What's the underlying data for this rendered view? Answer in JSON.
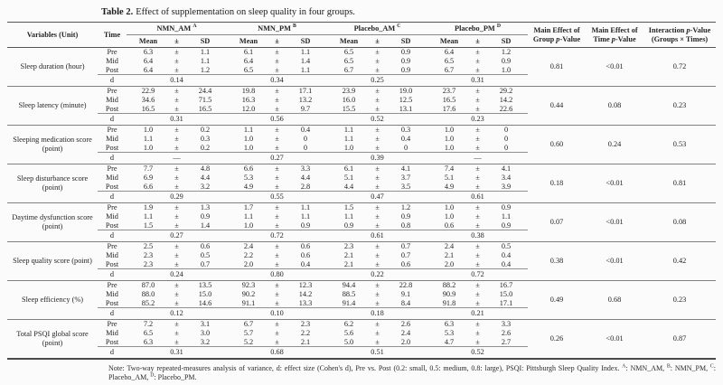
{
  "title": {
    "label": "Table 2.",
    "text": "Effect of supplementation on sleep quality in four groups."
  },
  "colors": {
    "page_background": "#fbfbfb",
    "text": "#222222",
    "heavy_rule": "#555555",
    "light_rule": "#888888"
  },
  "table": {
    "pm": "±",
    "d_label": "d",
    "headers": {
      "variables": "Variables (Unit)",
      "time": "Time",
      "groups": [
        {
          "name": "NMN_AM",
          "sup": "A"
        },
        {
          "name": "NMN_PM",
          "sup": "B"
        },
        {
          "name": "Placebo_AM",
          "sup": "C"
        },
        {
          "name": "Placebo_PM",
          "sup": "D"
        }
      ],
      "sub": [
        "Mean",
        "±",
        "SD"
      ],
      "p_columns": [
        {
          "id": "p-group",
          "lines": [
            "Main Effect of",
            "Group p-Value"
          ]
        },
        {
          "id": "p-time",
          "lines": [
            "Main Effect of",
            "Time p-Value"
          ]
        },
        {
          "id": "p-interaction",
          "lines": [
            "Interaction p-Value",
            "(Groups × Times)"
          ]
        }
      ]
    },
    "blocks": [
      {
        "variable": "Sleep duration (hour)",
        "rows": [
          {
            "time": "Pre",
            "cells": [
              [
                "6.3",
                "1.1"
              ],
              [
                "6.1",
                "1.1"
              ],
              [
                "6.5",
                "0.9"
              ],
              [
                "6.4",
                "1.2"
              ]
            ]
          },
          {
            "time": "Mid",
            "cells": [
              [
                "6.4",
                "1.1"
              ],
              [
                "6.4",
                "1.4"
              ],
              [
                "6.5",
                "0.9"
              ],
              [
                "6.5",
                "0.9"
              ]
            ]
          },
          {
            "time": "Post",
            "cells": [
              [
                "6.4",
                "1.2"
              ],
              [
                "6.5",
                "1.1"
              ],
              [
                "6.7",
                "0.9"
              ],
              [
                "6.7",
                "1.0"
              ]
            ]
          }
        ],
        "d": [
          "0.14",
          "0.34",
          "0.25",
          "0.31"
        ],
        "p": [
          "0.81",
          "<0.01",
          "0.72"
        ]
      },
      {
        "variable": "Sleep latency (minute)",
        "rows": [
          {
            "time": "Pre",
            "cells": [
              [
                "22.9",
                "24.4"
              ],
              [
                "19.8",
                "17.1"
              ],
              [
                "23.9",
                "19.0"
              ],
              [
                "23.7",
                "29.2"
              ]
            ]
          },
          {
            "time": "Mid",
            "cells": [
              [
                "34.6",
                "71.5"
              ],
              [
                "16.3",
                "13.2"
              ],
              [
                "16.0",
                "12.5"
              ],
              [
                "16.5",
                "14.2"
              ]
            ]
          },
          {
            "time": "Post",
            "cells": [
              [
                "16.5",
                "16.5"
              ],
              [
                "12.0",
                "9.7"
              ],
              [
                "15.5",
                "13.1"
              ],
              [
                "17.6",
                "22.6"
              ]
            ]
          }
        ],
        "d": [
          "0.31",
          "0.56",
          "0.52",
          "0.23"
        ],
        "p": [
          "0.44",
          "0.08",
          "0.23"
        ]
      },
      {
        "variable": "Sleeping medication score (point)",
        "rows": [
          {
            "time": "Pre",
            "cells": [
              [
                "1.0",
                "0.2"
              ],
              [
                "1.1",
                "0.4"
              ],
              [
                "1.1",
                "0.3"
              ],
              [
                "1.0",
                "0"
              ]
            ]
          },
          {
            "time": "Mid",
            "cells": [
              [
                "1.1",
                "0.3"
              ],
              [
                "1.0",
                "0"
              ],
              [
                "1.1",
                "0.4"
              ],
              [
                "1.0",
                "0"
              ]
            ]
          },
          {
            "time": "Post",
            "cells": [
              [
                "1.0",
                "0.2"
              ],
              [
                "1.0",
                "0"
              ],
              [
                "1.0",
                "0"
              ],
              [
                "1.0",
                "0"
              ]
            ]
          }
        ],
        "d": [
          "—",
          "0.27",
          "0.39",
          "—"
        ],
        "p": [
          "0.60",
          "0.24",
          "0.53"
        ]
      },
      {
        "variable": "Sleep disturbance score (point)",
        "rows": [
          {
            "time": "Pre",
            "cells": [
              [
                "7.7",
                "4.8"
              ],
              [
                "6.6",
                "3.3"
              ],
              [
                "6.1",
                "4.1"
              ],
              [
                "7.4",
                "4.1"
              ]
            ]
          },
          {
            "time": "Mid",
            "cells": [
              [
                "6.9",
                "4.4"
              ],
              [
                "5.3",
                "4.4"
              ],
              [
                "5.1",
                "3.7"
              ],
              [
                "5.1",
                "3.4"
              ]
            ]
          },
          {
            "time": "Post",
            "cells": [
              [
                "6.6",
                "3.2"
              ],
              [
                "4.9",
                "2.8"
              ],
              [
                "4.4",
                "3.5"
              ],
              [
                "4.9",
                "3.9"
              ]
            ]
          }
        ],
        "d": [
          "0.29",
          "0.55",
          "0.47",
          "0.61"
        ],
        "p": [
          "0.18",
          "<0.01",
          "0.81"
        ]
      },
      {
        "variable": "Daytime dysfunction score (point)",
        "rows": [
          {
            "time": "Pre",
            "cells": [
              [
                "1.9",
                "1.3"
              ],
              [
                "1.7",
                "1.1"
              ],
              [
                "1.5",
                "1.2"
              ],
              [
                "1.0",
                "0.9"
              ]
            ]
          },
          {
            "time": "Mid",
            "cells": [
              [
                "1.1",
                "0.9"
              ],
              [
                "1.1",
                "1.1"
              ],
              [
                "1.1",
                "0.9"
              ],
              [
                "1.0",
                "1.1"
              ]
            ]
          },
          {
            "time": "Post",
            "cells": [
              [
                "1.5",
                "1.4"
              ],
              [
                "1.0",
                "0.9"
              ],
              [
                "0.9",
                "0.8"
              ],
              [
                "0.6",
                "0.9"
              ]
            ]
          }
        ],
        "d": [
          "0.27",
          "0.72",
          "0.61",
          "0.38"
        ],
        "p": [
          "0.07",
          "<0.01",
          "0.08"
        ]
      },
      {
        "variable": "Sleep quality score (point)",
        "rows": [
          {
            "time": "Pre",
            "cells": [
              [
                "2.5",
                "0.6"
              ],
              [
                "2.4",
                "0.6"
              ],
              [
                "2.3",
                "0.7"
              ],
              [
                "2.4",
                "0.5"
              ]
            ]
          },
          {
            "time": "Mid",
            "cells": [
              [
                "2.3",
                "0.5"
              ],
              [
                "2.2",
                "0.6"
              ],
              [
                "2.1",
                "0.7"
              ],
              [
                "2.1",
                "0.4"
              ]
            ]
          },
          {
            "time": "Post",
            "cells": [
              [
                "2.3",
                "0.7"
              ],
              [
                "2.0",
                "0.4"
              ],
              [
                "2.1",
                "0.6"
              ],
              [
                "2.0",
                "0.4"
              ]
            ]
          }
        ],
        "d": [
          "0.24",
          "0.80",
          "0.22",
          "0.72"
        ],
        "p": [
          "0.38",
          "<0.01",
          "0.42"
        ]
      },
      {
        "variable": "Sleep efficiency (%)",
        "rows": [
          {
            "time": "Pre",
            "cells": [
              [
                "87.0",
                "13.5"
              ],
              [
                "92.3",
                "12.3"
              ],
              [
                "94.4",
                "22.8"
              ],
              [
                "88.2",
                "16.7"
              ]
            ]
          },
          {
            "time": "Mid",
            "cells": [
              [
                "88.0",
                "15.0"
              ],
              [
                "90.2",
                "14.2"
              ],
              [
                "88.5",
                "9.1"
              ],
              [
                "90.9",
                "15.0"
              ]
            ]
          },
          {
            "time": "Post",
            "cells": [
              [
                "85.2",
                "14.6"
              ],
              [
                "91.1",
                "13.3"
              ],
              [
                "91.4",
                "8.4"
              ],
              [
                "91.8",
                "17.1"
              ]
            ]
          }
        ],
        "d": [
          "0.12",
          "0.10",
          "0.18",
          "0.21"
        ],
        "p": [
          "0.49",
          "0.68",
          "0.23"
        ]
      },
      {
        "variable": "Total PSQI global score (point)",
        "rows": [
          {
            "time": "Pre",
            "cells": [
              [
                "7.2",
                "3.1"
              ],
              [
                "6.7",
                "2.3"
              ],
              [
                "6.2",
                "2.6"
              ],
              [
                "6.3",
                "3.3"
              ]
            ]
          },
          {
            "time": "Mid",
            "cells": [
              [
                "6.5",
                "3.0"
              ],
              [
                "5.7",
                "2.2"
              ],
              [
                "5.6",
                "2.4"
              ],
              [
                "5.3",
                "2.6"
              ]
            ]
          },
          {
            "time": "Post",
            "cells": [
              [
                "6.3",
                "3.2"
              ],
              [
                "5.2",
                "2.1"
              ],
              [
                "5.0",
                "2.0"
              ],
              [
                "4.7",
                "2.7"
              ]
            ]
          }
        ],
        "d": [
          "0.31",
          "0.68",
          "0.51",
          "0.52"
        ],
        "p": [
          "0.26",
          "<0.01",
          "0.87"
        ]
      }
    ]
  },
  "note": {
    "main": "Note: Two-way repeated-measures analysis of variance, d: effect size (Cohen's d), Pre vs. Post (0.2: small, 0.5: medium, 0.8: large), PSQI: Pittsburgh Sleep Quality Index.",
    "abbrevs": [
      {
        "sup": "A",
        "text": ": NMN_AM,"
      },
      {
        "sup": "B",
        "text": ": NMN_PM,"
      },
      {
        "sup": "C",
        "text": ": Placebo_AM,"
      },
      {
        "sup": "D",
        "text": ": Placebo_PM."
      }
    ]
  }
}
